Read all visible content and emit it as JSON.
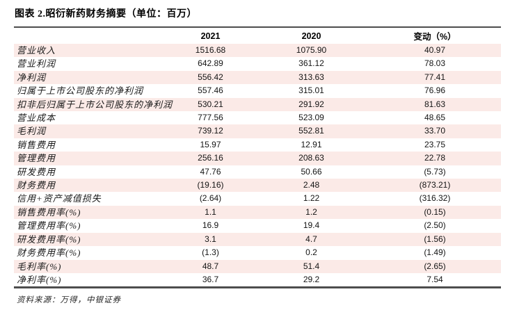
{
  "title": "图表 2.昭衍新药财务摘要（单位：百万）",
  "table": {
    "columns": [
      "",
      "2021",
      "2020",
      "变动（%）"
    ],
    "rows": [
      {
        "label": "营业收入",
        "y2021": "1516.68",
        "y2020": "1075.90",
        "change": "40.97"
      },
      {
        "label": "营业利润",
        "y2021": "642.89",
        "y2020": "361.12",
        "change": "78.03"
      },
      {
        "label": "净利润",
        "y2021": "556.42",
        "y2020": "313.63",
        "change": "77.41"
      },
      {
        "label": "归属于上市公司股东的净利润",
        "y2021": "557.46",
        "y2020": "315.01",
        "change": "76.96"
      },
      {
        "label": "扣非后归属于上市公司股东的净利润",
        "y2021": "530.21",
        "y2020": "291.92",
        "change": "81.63"
      },
      {
        "label": "营业成本",
        "y2021": "777.56",
        "y2020": "523.09",
        "change": "48.65"
      },
      {
        "label": "毛利润",
        "y2021": "739.12",
        "y2020": "552.81",
        "change": "33.70"
      },
      {
        "label": "销售费用",
        "y2021": "15.97",
        "y2020": "12.91",
        "change": "23.75"
      },
      {
        "label": "管理费用",
        "y2021": "256.16",
        "y2020": "208.63",
        "change": "22.78"
      },
      {
        "label": "研发费用",
        "y2021": "47.76",
        "y2020": "50.66",
        "change": "(5.73)"
      },
      {
        "label": "财务费用",
        "y2021": "(19.16)",
        "y2020": "2.48",
        "change": "(873.21)"
      },
      {
        "label": "信用+资产减值损失",
        "y2021": "(2.64)",
        "y2020": "1.22",
        "change": "(316.32)"
      },
      {
        "label": "销售费用率(%)",
        "y2021": "1.1",
        "y2020": "1.2",
        "change": "(0.15)"
      },
      {
        "label": "管理费用率(%)",
        "y2021": "16.9",
        "y2020": "19.4",
        "change": "(2.50)"
      },
      {
        "label": "研发费用率(%)",
        "y2021": "3.1",
        "y2020": "4.7",
        "change": "(1.56)"
      },
      {
        "label": "财务费用率(%)",
        "y2021": "(1.3)",
        "y2020": "0.2",
        "change": "(1.49)"
      },
      {
        "label": "毛利率(%)",
        "y2021": "48.7",
        "y2020": "51.4",
        "change": "(2.65)"
      },
      {
        "label": "净利率(%)",
        "y2021": "36.7",
        "y2020": "29.2",
        "change": "7.54"
      }
    ]
  },
  "footer": {
    "source": "资料来源：万得，中银证券"
  },
  "colors": {
    "alt_row_background": "#fbeae7",
    "rule_line": "#4d4d4d",
    "text": "#141414"
  }
}
